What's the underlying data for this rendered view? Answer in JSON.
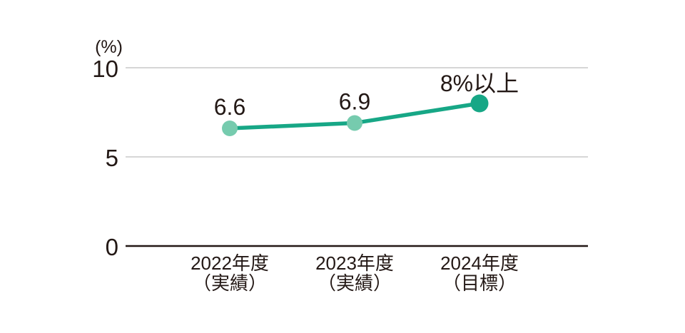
{
  "chart_data": {
    "type": "line",
    "title": "",
    "unit_label": "(%)",
    "categories": [
      "2022年度",
      "2023年度",
      "2024年度"
    ],
    "category_sublabels": [
      "（実績）",
      "（実績）",
      "（目標）"
    ],
    "values": [
      6.6,
      6.9,
      8
    ],
    "point_labels": [
      "6.6",
      "6.9",
      "8%以上"
    ],
    "point_types": [
      "actual",
      "actual",
      "target"
    ],
    "ylim": [
      0,
      10
    ],
    "yticks": [
      0,
      5,
      10
    ],
    "grid": true,
    "legend_position": "none",
    "colors": {
      "line": "#17a786",
      "marker_actual": "#76cbae",
      "marker_target": "#17a786",
      "gridline": "#c9c9c9",
      "axis": "#231815",
      "text": "#231815"
    }
  }
}
